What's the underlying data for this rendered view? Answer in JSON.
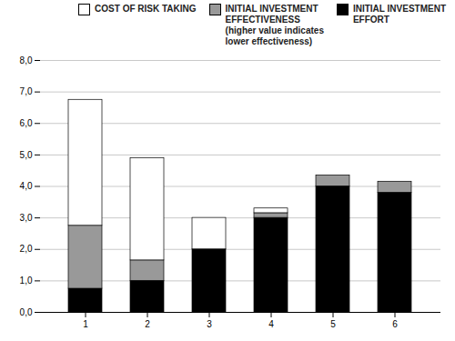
{
  "chart_data": {
    "type": "bar",
    "stacked": true,
    "categories": [
      "1",
      "2",
      "3",
      "4",
      "5",
      "6"
    ],
    "series": [
      {
        "name": "INITIAL INVESTMENT\nEFFORT",
        "color": "#000000",
        "values": [
          0.75,
          1.0,
          2.0,
          3.0,
          4.0,
          3.8
        ]
      },
      {
        "name": "INITIAL INVESTMENT\nEFFECTIVENESS\n(higher value indicates\nlower effectiveness)",
        "color": "#999999",
        "values": [
          2.0,
          0.65,
          0.0,
          0.15,
          0.35,
          0.35
        ]
      },
      {
        "name": "COST OF RISK TAKING",
        "color": "#ffffff",
        "values": [
          4.0,
          3.25,
          1.0,
          0.15,
          0.0,
          0.0
        ]
      }
    ],
    "ylim": [
      0,
      8.0
    ],
    "yticks": [
      {
        "value": 0.0,
        "label": "0,0"
      },
      {
        "value": 1.0,
        "label": "1,0"
      },
      {
        "value": 2.0,
        "label": "2,0"
      },
      {
        "value": 3.0,
        "label": "3,0"
      },
      {
        "value": 4.0,
        "label": "4,0"
      },
      {
        "value": 5.0,
        "label": "5,0"
      },
      {
        "value": 6.0,
        "label": "6,0"
      },
      {
        "value": 7.0,
        "label": "7,0"
      },
      {
        "value": 8.0,
        "label": "8,0"
      }
    ],
    "grid": true,
    "legend": "upper right"
  }
}
